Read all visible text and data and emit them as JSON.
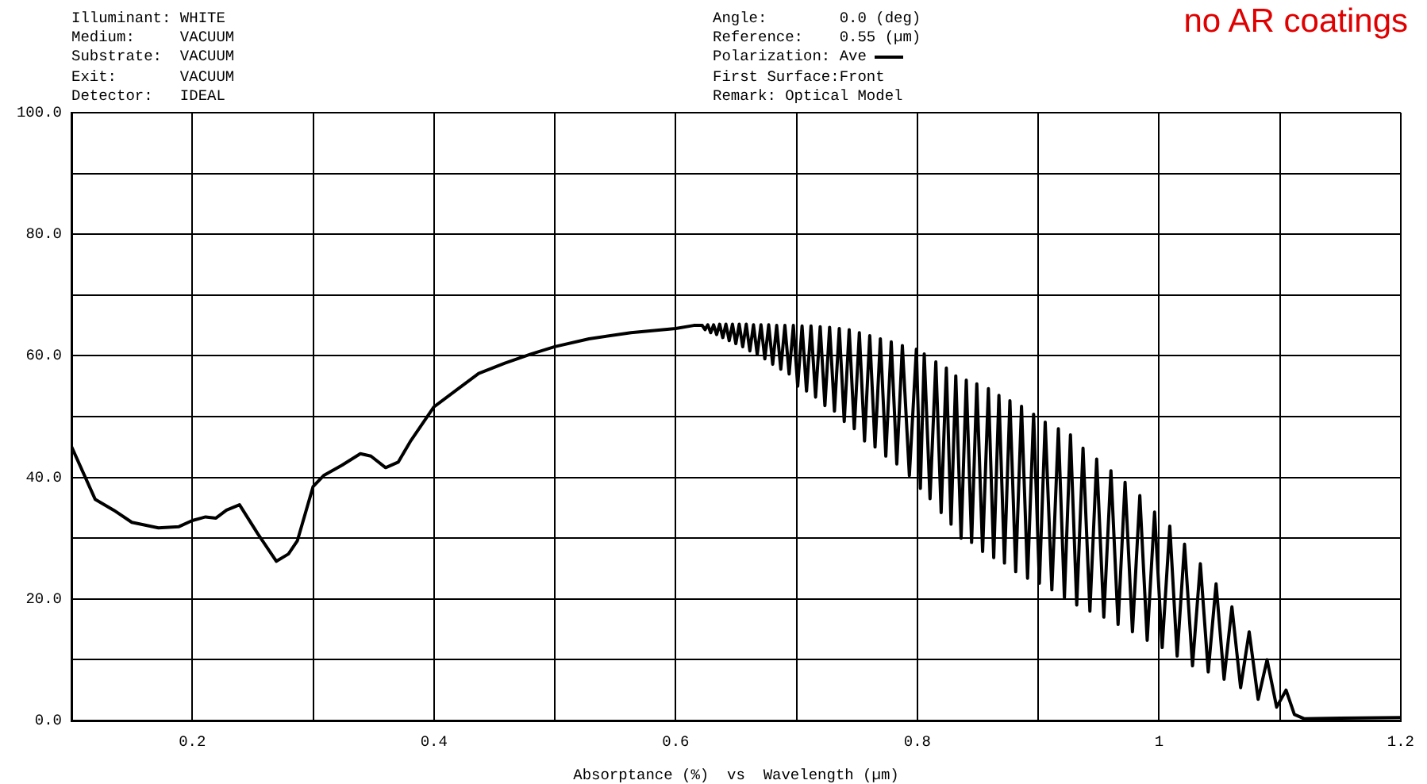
{
  "chart_data": {
    "type": "line",
    "xlabel": "Absorptance (%)  vs  Wavelength (µm)",
    "annotations": [
      "Illuminant: WHITE",
      "Medium:     VACUUM",
      "Substrate:  VACUUM",
      "Exit:       VACUUM",
      "Detector:   IDEAL",
      "Angle:        0.0 (deg)",
      "Reference:    0.55 (µm)",
      "First Surface:Front",
      "Remark: Optical Model",
      "no AR coatings"
    ],
    "series": [
      {
        "name": "Polarization: Ave",
        "color": "#000000",
        "x": [
          0.1,
          0.1196,
          0.135,
          0.15,
          0.172,
          0.189,
          0.2,
          0.211,
          0.2196,
          0.2283,
          0.2391,
          0.2543,
          0.2696,
          0.2796,
          0.287,
          0.3,
          0.3087,
          0.3239,
          0.3391,
          0.3478,
          0.36,
          0.3704,
          0.3804,
          0.4,
          0.4174,
          0.437,
          0.4587,
          0.4804,
          0.5,
          0.5283,
          0.563,
          0.6,
          0.615,
          0.622,
          0.6243,
          0.6266,
          0.629,
          0.6314,
          0.6339,
          0.6364,
          0.639,
          0.6416,
          0.6443,
          0.647,
          0.6498,
          0.6526,
          0.6555,
          0.6584,
          0.6614,
          0.6644,
          0.6675,
          0.6706,
          0.6738,
          0.677,
          0.6803,
          0.6836,
          0.687,
          0.6904,
          0.6939,
          0.6974,
          0.701,
          0.7046,
          0.7083,
          0.712,
          0.7158,
          0.7196,
          0.7235,
          0.7274,
          0.7314,
          0.7354,
          0.7395,
          0.7436,
          0.7478,
          0.752,
          0.7563,
          0.7606,
          0.765,
          0.7694,
          0.7739,
          0.7784,
          0.783,
          0.7876,
          0.7934,
          0.7992,
          0.8025,
          0.8057,
          0.8105,
          0.8153,
          0.8197,
          0.824,
          0.8279,
          0.8318,
          0.8362,
          0.8405,
          0.8449,
          0.8492,
          0.854,
          0.8588,
          0.8632,
          0.8675,
          0.8721,
          0.8766,
          0.8814,
          0.8862,
          0.8912,
          0.8962,
          0.901,
          0.9058,
          0.9113,
          0.9167,
          0.9217,
          0.9267,
          0.9319,
          0.9371,
          0.9428,
          0.9484,
          0.9543,
          0.9602,
          0.9661,
          0.9719,
          0.978,
          0.9841,
          0.9902,
          0.9963,
          1.0026,
          1.0089,
          1.015,
          1.0211,
          1.0277,
          1.0342,
          1.0407,
          1.0472,
          1.0538,
          1.0603,
          1.0675,
          1.0746,
          1.082,
          1.0894,
          1.0973,
          1.1051,
          1.112,
          1.12,
          1.15,
          1.2
        ],
        "values": [
          45.1,
          36.4,
          34.6,
          32.6,
          31.7,
          31.9,
          32.9,
          33.5,
          33.3,
          34.6,
          35.5,
          30.7,
          26.2,
          27.4,
          29.6,
          38.5,
          40.3,
          42,
          43.9,
          43.5,
          41.6,
          42.5,
          45.9,
          51.6,
          54.2,
          57.1,
          58.8,
          60.3,
          61.5,
          62.8,
          63.8,
          64.5,
          65,
          65,
          64.3,
          65.1,
          63.8,
          65.1,
          63.5,
          65.2,
          63,
          65.2,
          62.5,
          65.2,
          62,
          65.2,
          61.5,
          65.2,
          60.8,
          65.1,
          60.2,
          65.1,
          59.5,
          65.1,
          58.6,
          65,
          57.8,
          65,
          57,
          65,
          55,
          64.9,
          54.2,
          64.9,
          53.2,
          64.8,
          51.8,
          64.7,
          50.9,
          64.5,
          49.2,
          64.3,
          48,
          63.8,
          46,
          63.3,
          45,
          62.8,
          43.5,
          62.3,
          42.2,
          61.7,
          40.3,
          61.1,
          38.2,
          60.3,
          36.5,
          59,
          34.2,
          58,
          32.3,
          56.7,
          30,
          56,
          29.3,
          55.4,
          27.8,
          54.6,
          26.8,
          53.5,
          25.9,
          52.6,
          24.5,
          51.7,
          23.4,
          50.4,
          22.6,
          49.1,
          21.5,
          48,
          20.2,
          47,
          19,
          44.8,
          18,
          43,
          17,
          41.1,
          15.8,
          39.2,
          14.6,
          37,
          13.2,
          34.3,
          12,
          32,
          10.6,
          29,
          9,
          25.8,
          8,
          22.5,
          6.8,
          18.7,
          5.4,
          14.6,
          3.5,
          10,
          2.2,
          5,
          1,
          0.3,
          0.4,
          0.5
        ]
      }
    ],
    "xlim": [
      0.1,
      1.2
    ],
    "xticks": [
      {
        "value": 0.1,
        "label": null
      },
      0.2,
      {
        "value": 0.3,
        "label": null
      },
      0.4,
      {
        "value": 0.5,
        "label": null
      },
      0.6,
      {
        "value": 0.7,
        "label": null
      },
      0.8,
      {
        "value": 0.9,
        "label": null
      },
      1,
      {
        "value": 1.1,
        "label": null
      },
      1.2
    ],
    "ylim": [
      0,
      100
    ],
    "yticks": [
      {
        "value": 0,
        "label": "0.0"
      },
      {
        "value": 10,
        "label": null
      },
      {
        "value": 20,
        "label": "20.0"
      },
      {
        "value": 30,
        "label": null
      },
      {
        "value": 40,
        "label": "40.0"
      },
      {
        "value": 50,
        "label": null
      },
      {
        "value": 60,
        "label": "60.0"
      },
      {
        "value": 70,
        "label": null
      },
      {
        "value": 80,
        "label": "80.0"
      },
      {
        "value": 90,
        "label": null
      },
      {
        "value": 100,
        "label": "100.0"
      }
    ],
    "grid": true,
    "legend": "top right",
    "marker": "none",
    "line_style": "solid"
  }
}
